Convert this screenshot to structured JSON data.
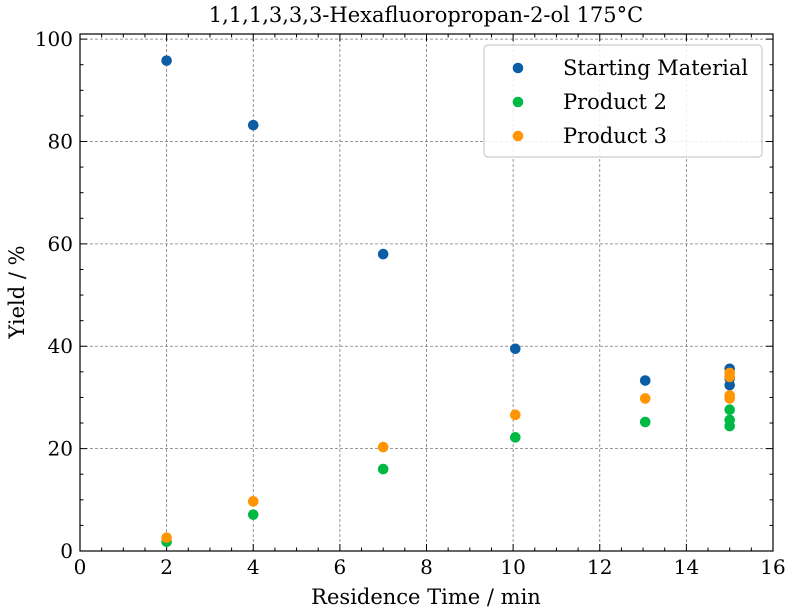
{
  "chart_data": {
    "type": "scatter",
    "title": "1,1,1,3,3,3-Hexafluoropropan-2-ol 175°C",
    "xlabel": "Residence Time / min",
    "ylabel": "Yield / %",
    "xlim": [
      0,
      16
    ],
    "ylim": [
      0,
      101
    ],
    "xticks": [
      "0",
      "2",
      "4",
      "6",
      "8",
      "10",
      "12",
      "14",
      "16"
    ],
    "yticks": [
      "0",
      "20",
      "40",
      "60",
      "80",
      "100"
    ],
    "grid": true,
    "legend": {
      "placement": "top-right"
    },
    "series": [
      {
        "name": "Starting Material",
        "color": "#0C5DA5",
        "points": [
          {
            "x": 2,
            "y": 95.8
          },
          {
            "x": 4,
            "y": 83.2
          },
          {
            "x": 7,
            "y": 58.0
          },
          {
            "x": 10.05,
            "y": 39.5
          },
          {
            "x": 13.05,
            "y": 33.3
          },
          {
            "x": 15,
            "y": 35.6
          },
          {
            "x": 15,
            "y": 33.7
          },
          {
            "x": 15,
            "y": 32.4
          }
        ]
      },
      {
        "name": "Product 2",
        "color": "#00B945",
        "points": [
          {
            "x": 2,
            "y": 1.8
          },
          {
            "x": 4,
            "y": 7.1
          },
          {
            "x": 7,
            "y": 16.0
          },
          {
            "x": 10.05,
            "y": 22.2
          },
          {
            "x": 13.05,
            "y": 25.2
          },
          {
            "x": 15,
            "y": 27.6
          },
          {
            "x": 15,
            "y": 25.6
          },
          {
            "x": 15,
            "y": 24.4
          }
        ]
      },
      {
        "name": "Product 3",
        "color": "#FF9500",
        "points": [
          {
            "x": 2,
            "y": 2.6
          },
          {
            "x": 4,
            "y": 9.7
          },
          {
            "x": 7,
            "y": 20.3
          },
          {
            "x": 10.05,
            "y": 26.6
          },
          {
            "x": 13.05,
            "y": 29.8
          },
          {
            "x": 15,
            "y": 34.8
          },
          {
            "x": 15,
            "y": 34.0
          },
          {
            "x": 15,
            "y": 30.4
          },
          {
            "x": 15,
            "y": 29.8
          }
        ]
      }
    ]
  }
}
